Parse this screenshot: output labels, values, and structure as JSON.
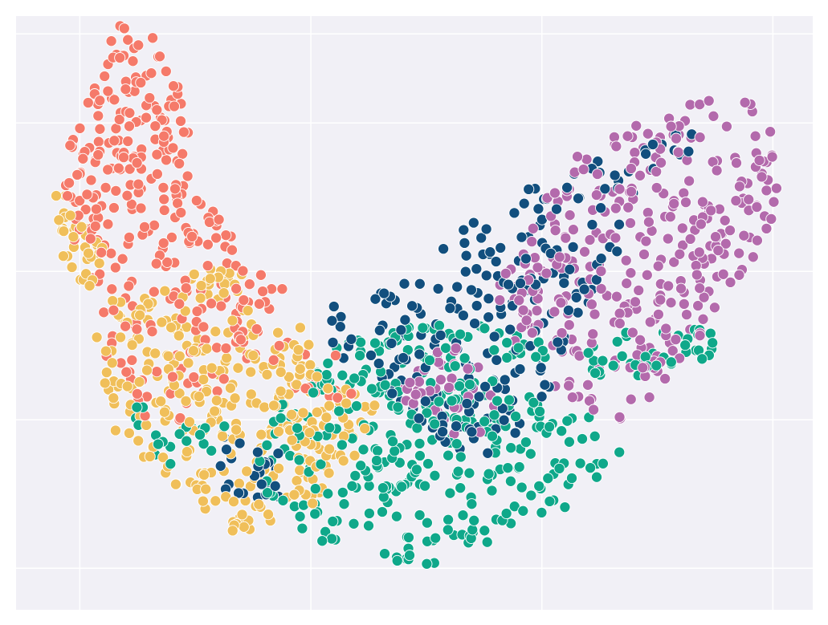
{
  "chart_data": {
    "type": "scatter",
    "title": "",
    "xlabel": "",
    "ylabel": "",
    "xlim": [
      0,
      100
    ],
    "ylim": [
      0,
      100
    ],
    "grid": true,
    "legend": "none",
    "x_gridlines": [
      8,
      37,
      66,
      95
    ],
    "y_gridlines": [
      7,
      32,
      57,
      82,
      97
    ],
    "marker": "circle",
    "marker_edge_color": "#ffffff",
    "point_seed": 7,
    "series": [
      {
        "color": "#f57a6a",
        "regions": [
          {
            "count": 230,
            "polygon": [
              [
                13,
                99
              ],
              [
                17,
                97
              ],
              [
                20,
                90
              ],
              [
                22,
                80
              ],
              [
                24,
                70
              ],
              [
                27,
                63
              ],
              [
                30,
                58
              ],
              [
                34,
                54
              ],
              [
                31,
                51
              ],
              [
                24,
                50
              ],
              [
                18,
                53
              ],
              [
                13,
                56
              ],
              [
                7,
                62
              ],
              [
                5,
                68
              ],
              [
                6,
                76
              ],
              [
                8,
                83
              ],
              [
                10,
                90
              ]
            ]
          },
          {
            "count": 75,
            "polygon": [
              [
                9,
                58
              ],
              [
                17,
                54
              ],
              [
                24,
                52
              ],
              [
                31,
                52
              ],
              [
                35,
                48
              ],
              [
                33,
                44
              ],
              [
                27,
                38
              ],
              [
                20,
                31
              ],
              [
                14,
                33
              ],
              [
                11,
                40
              ],
              [
                10,
                48
              ]
            ]
          },
          {
            "count": 20,
            "polygon": [
              [
                30,
                48
              ],
              [
                36,
                45
              ],
              [
                40,
                43
              ],
              [
                44,
                37
              ],
              [
                40,
                34
              ],
              [
                34,
                38
              ],
              [
                30,
                43
              ]
            ]
          }
        ]
      },
      {
        "color": "#f0bf5a",
        "regions": [
          {
            "count": 35,
            "polygon": [
              [
                5,
                71
              ],
              [
                8,
                68
              ],
              [
                10,
                63
              ],
              [
                12,
                60
              ],
              [
                10,
                54
              ],
              [
                7,
                56
              ],
              [
                5,
                62
              ]
            ]
          },
          {
            "count": 20,
            "polygon": [
              [
                22,
                59
              ],
              [
                28,
                58
              ],
              [
                30,
                55
              ],
              [
                26,
                52
              ],
              [
                22,
                54
              ]
            ]
          },
          {
            "count": 260,
            "polygon": [
              [
                10,
                52
              ],
              [
                17,
                54
              ],
              [
                25,
                53
              ],
              [
                31,
                51
              ],
              [
                35,
                49
              ],
              [
                37,
                45
              ],
              [
                40,
                36
              ],
              [
                42,
                30
              ],
              [
                39,
                20
              ],
              [
                34,
                14
              ],
              [
                27,
                13
              ],
              [
                22,
                19
              ],
              [
                17,
                24
              ],
              [
                12,
                30
              ],
              [
                10,
                40
              ]
            ]
          },
          {
            "count": 60,
            "polygon": [
              [
                33,
                46
              ],
              [
                39,
                44
              ],
              [
                44,
                40
              ],
              [
                46,
                33
              ],
              [
                42,
                24
              ],
              [
                36,
                22
              ],
              [
                31,
                31
              ]
            ]
          }
        ]
      },
      {
        "color": "#0fa88a",
        "regions": [
          {
            "count": 300,
            "polygon": [
              [
                30,
                19
              ],
              [
                35,
                13
              ],
              [
                43,
                8
              ],
              [
                51,
                7
              ],
              [
                58,
                10
              ],
              [
                64,
                14
              ],
              [
                70,
                18
              ],
              [
                76,
                24
              ],
              [
                76,
                30
              ],
              [
                70,
                34
              ],
              [
                62,
                38
              ],
              [
                56,
                42
              ],
              [
                49,
                45
              ],
              [
                41,
                45
              ],
              [
                35,
                40
              ],
              [
                31,
                30
              ]
            ]
          },
          {
            "count": 90,
            "polygon": [
              [
                42,
                46
              ],
              [
                50,
                48
              ],
              [
                58,
                48
              ],
              [
                66,
                45
              ],
              [
                72,
                40
              ],
              [
                78,
                38
              ],
              [
                86,
                41
              ],
              [
                89,
                46
              ],
              [
                84,
                51
              ],
              [
                77,
                47
              ],
              [
                70,
                43
              ],
              [
                62,
                42
              ],
              [
                54,
                41
              ],
              [
                48,
                41
              ]
            ]
          },
          {
            "count": 20,
            "polygon": [
              [
                14,
                34
              ],
              [
                22,
                36
              ],
              [
                28,
                31
              ],
              [
                24,
                25
              ],
              [
                17,
                24
              ]
            ]
          }
        ]
      },
      {
        "color": "#124f7e",
        "regions": [
          {
            "count": 220,
            "polygon": [
              [
                36,
                49
              ],
              [
                45,
                54
              ],
              [
                52,
                60
              ],
              [
                58,
                66
              ],
              [
                64,
                71
              ],
              [
                70,
                74
              ],
              [
                76,
                78
              ],
              [
                80,
                80
              ],
              [
                85,
                83
              ],
              [
                86,
                77
              ],
              [
                80,
                70
              ],
              [
                76,
                60
              ],
              [
                72,
                52
              ],
              [
                70,
                42
              ],
              [
                64,
                32
              ],
              [
                60,
                25
              ],
              [
                52,
                26
              ],
              [
                46,
                35
              ],
              [
                40,
                42
              ]
            ]
          },
          {
            "count": 25,
            "polygon": [
              [
                24,
                29
              ],
              [
                32,
                30
              ],
              [
                36,
                24
              ],
              [
                33,
                18
              ],
              [
                26,
                20
              ]
            ]
          }
        ]
      },
      {
        "color": "#b36aac",
        "regions": [
          {
            "count": 320,
            "polygon": [
              [
                68,
                75
              ],
              [
                72,
                79
              ],
              [
                78,
                82
              ],
              [
                84,
                85
              ],
              [
                90,
                87
              ],
              [
                94,
                84
              ],
              [
                96,
                76
              ],
              [
                95,
                66
              ],
              [
                92,
                56
              ],
              [
                87,
                48
              ],
              [
                81,
                37
              ],
              [
                76,
                32
              ],
              [
                70,
                34
              ],
              [
                66,
                40
              ],
              [
                62,
                46
              ],
              [
                59,
                52
              ],
              [
                63,
                60
              ],
              [
                66,
                68
              ]
            ]
          },
          {
            "count": 40,
            "polygon": [
              [
                49,
                42
              ],
              [
                55,
                45
              ],
              [
                60,
                40
              ],
              [
                62,
                33
              ],
              [
                57,
                28
              ],
              [
                51,
                31
              ],
              [
                48,
                37
              ]
            ]
          }
        ]
      }
    ]
  }
}
